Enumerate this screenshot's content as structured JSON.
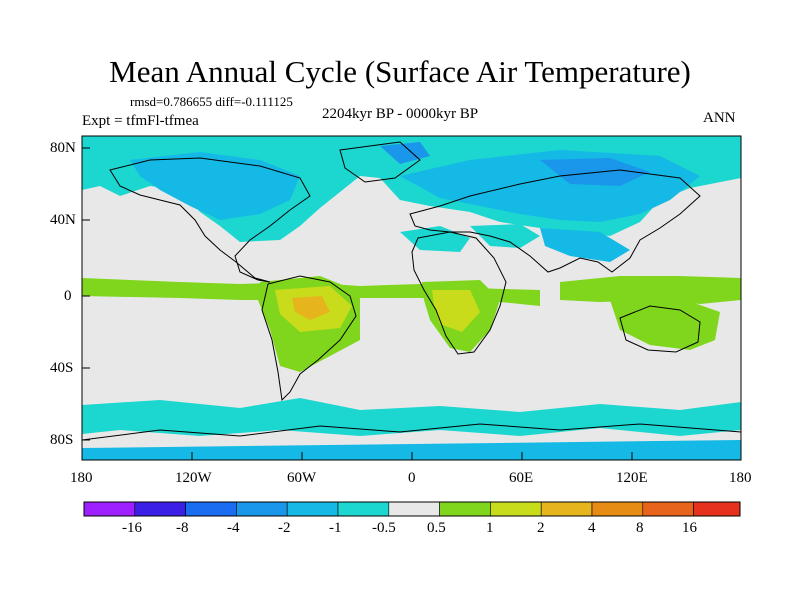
{
  "title": "Mean Annual Cycle (Surface Air Temperature)",
  "stats": {
    "rmsd_label": "rmsd=",
    "rmsd": "0.786655",
    "diff_label": "diff=",
    "diff": "-0.111125"
  },
  "experiment": "Expt = tfmFl-tfmea",
  "period": "2204kyr BP - 0000kyr BP",
  "season": "ANN",
  "lat_labels": [
    "80N",
    "40N",
    "0",
    "40S",
    "80S"
  ],
  "lon_labels": [
    "180",
    "120W",
    "60W",
    "0",
    "60E",
    "120E",
    "180"
  ],
  "colorbar": {
    "labels": [
      "-16",
      "-8",
      "-4",
      "-2",
      "-1",
      "-0.5",
      "0.5",
      "1",
      "2",
      "4",
      "8",
      "16"
    ],
    "colors": [
      "#9e1fff",
      "#3b1fe6",
      "#1a6df0",
      "#1a96ea",
      "#14b9e6",
      "#1cd6d0",
      "#e8e8e8",
      "#7fd61c",
      "#c8dc1c",
      "#e6b41c",
      "#e68c14",
      "#e6641c",
      "#e6321c"
    ]
  },
  "field_colors": {
    "neutral": "#e8e8e8",
    "cool_light": "#1cd6d0",
    "cool_mid": "#14b9e6",
    "cool_strong": "#1a96ea",
    "warm_light": "#7fd61c",
    "warm_mid": "#c8dc1c",
    "warm_strong": "#e6b41c"
  }
}
